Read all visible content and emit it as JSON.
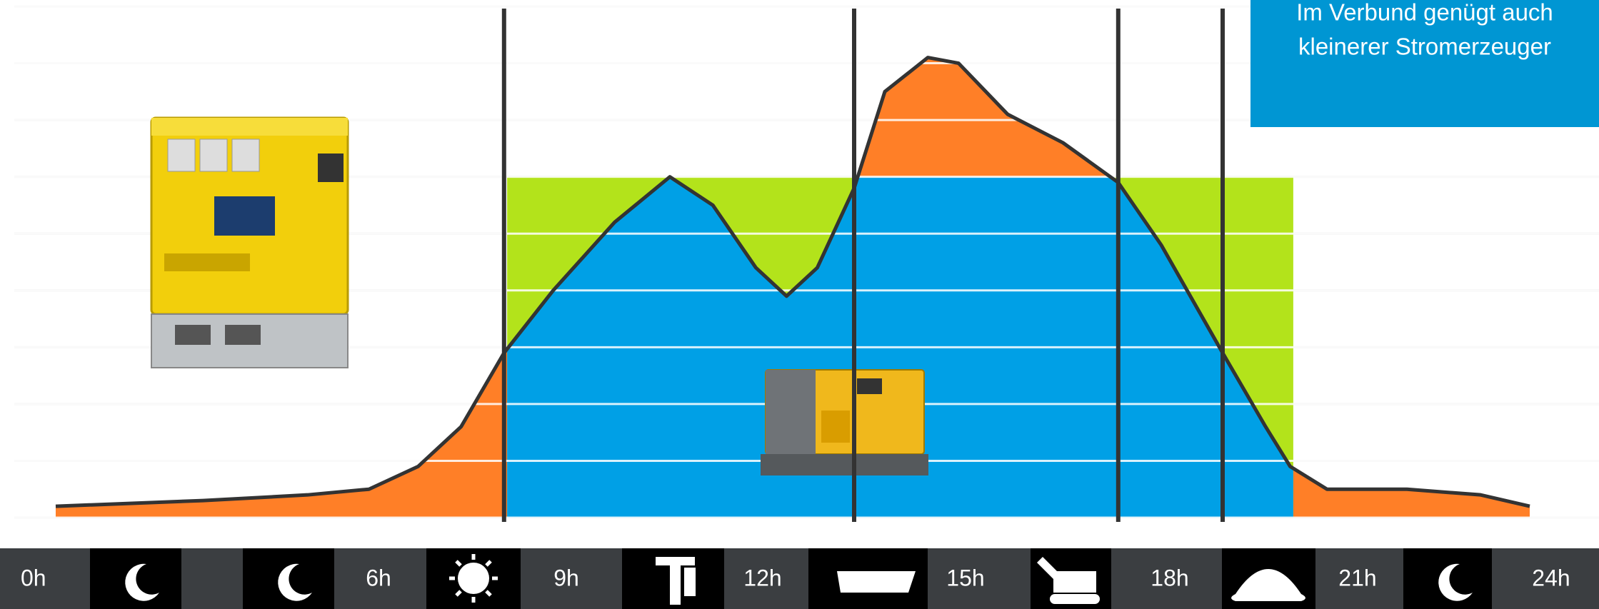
{
  "chart_data": {
    "type": "area",
    "annotation": [
      "Im Verbund genügt auch",
      "kleinerer Stromerzeuger"
    ],
    "x": [
      0,
      2.4,
      4.1,
      5.1,
      5.9,
      6.6,
      7.3,
      8.1,
      9.1,
      10.0,
      10.7,
      11.4,
      11.9,
      12.4,
      13.0,
      13.5,
      14.2,
      14.7,
      15.5,
      16.4,
      17.3,
      18.0,
      19.0,
      19.7,
      20.1,
      20.7,
      22.0,
      23.2,
      24.0
    ],
    "values": [
      0.2,
      0.3,
      0.4,
      0.5,
      0.9,
      1.6,
      2.9,
      4.0,
      5.2,
      6.0,
      5.5,
      4.4,
      3.9,
      4.4,
      5.8,
      7.5,
      8.1,
      8.0,
      7.1,
      6.6,
      5.9,
      4.8,
      2.9,
      1.6,
      0.9,
      0.5,
      0.5,
      0.4,
      0.2
    ],
    "color": "#ff7f27",
    "line_color": "#333333",
    "capacity": 6.0,
    "capacity_span": [
      7.35,
      20.15
    ],
    "capacity_color": "#b3e31b",
    "covered_color": "#00a0e6",
    "markers": [
      7.3,
      13.0,
      17.3,
      19.0
    ],
    "xlim": [
      0,
      24
    ],
    "ylim": [
      0,
      9
    ],
    "yticks": [
      0,
      1,
      2,
      3,
      4,
      5,
      6,
      7,
      8,
      9
    ],
    "grid": true,
    "timeline": [
      "0h",
      "6h",
      "9h",
      "12h",
      "15h",
      "18h",
      "21h",
      "24h"
    ]
  }
}
